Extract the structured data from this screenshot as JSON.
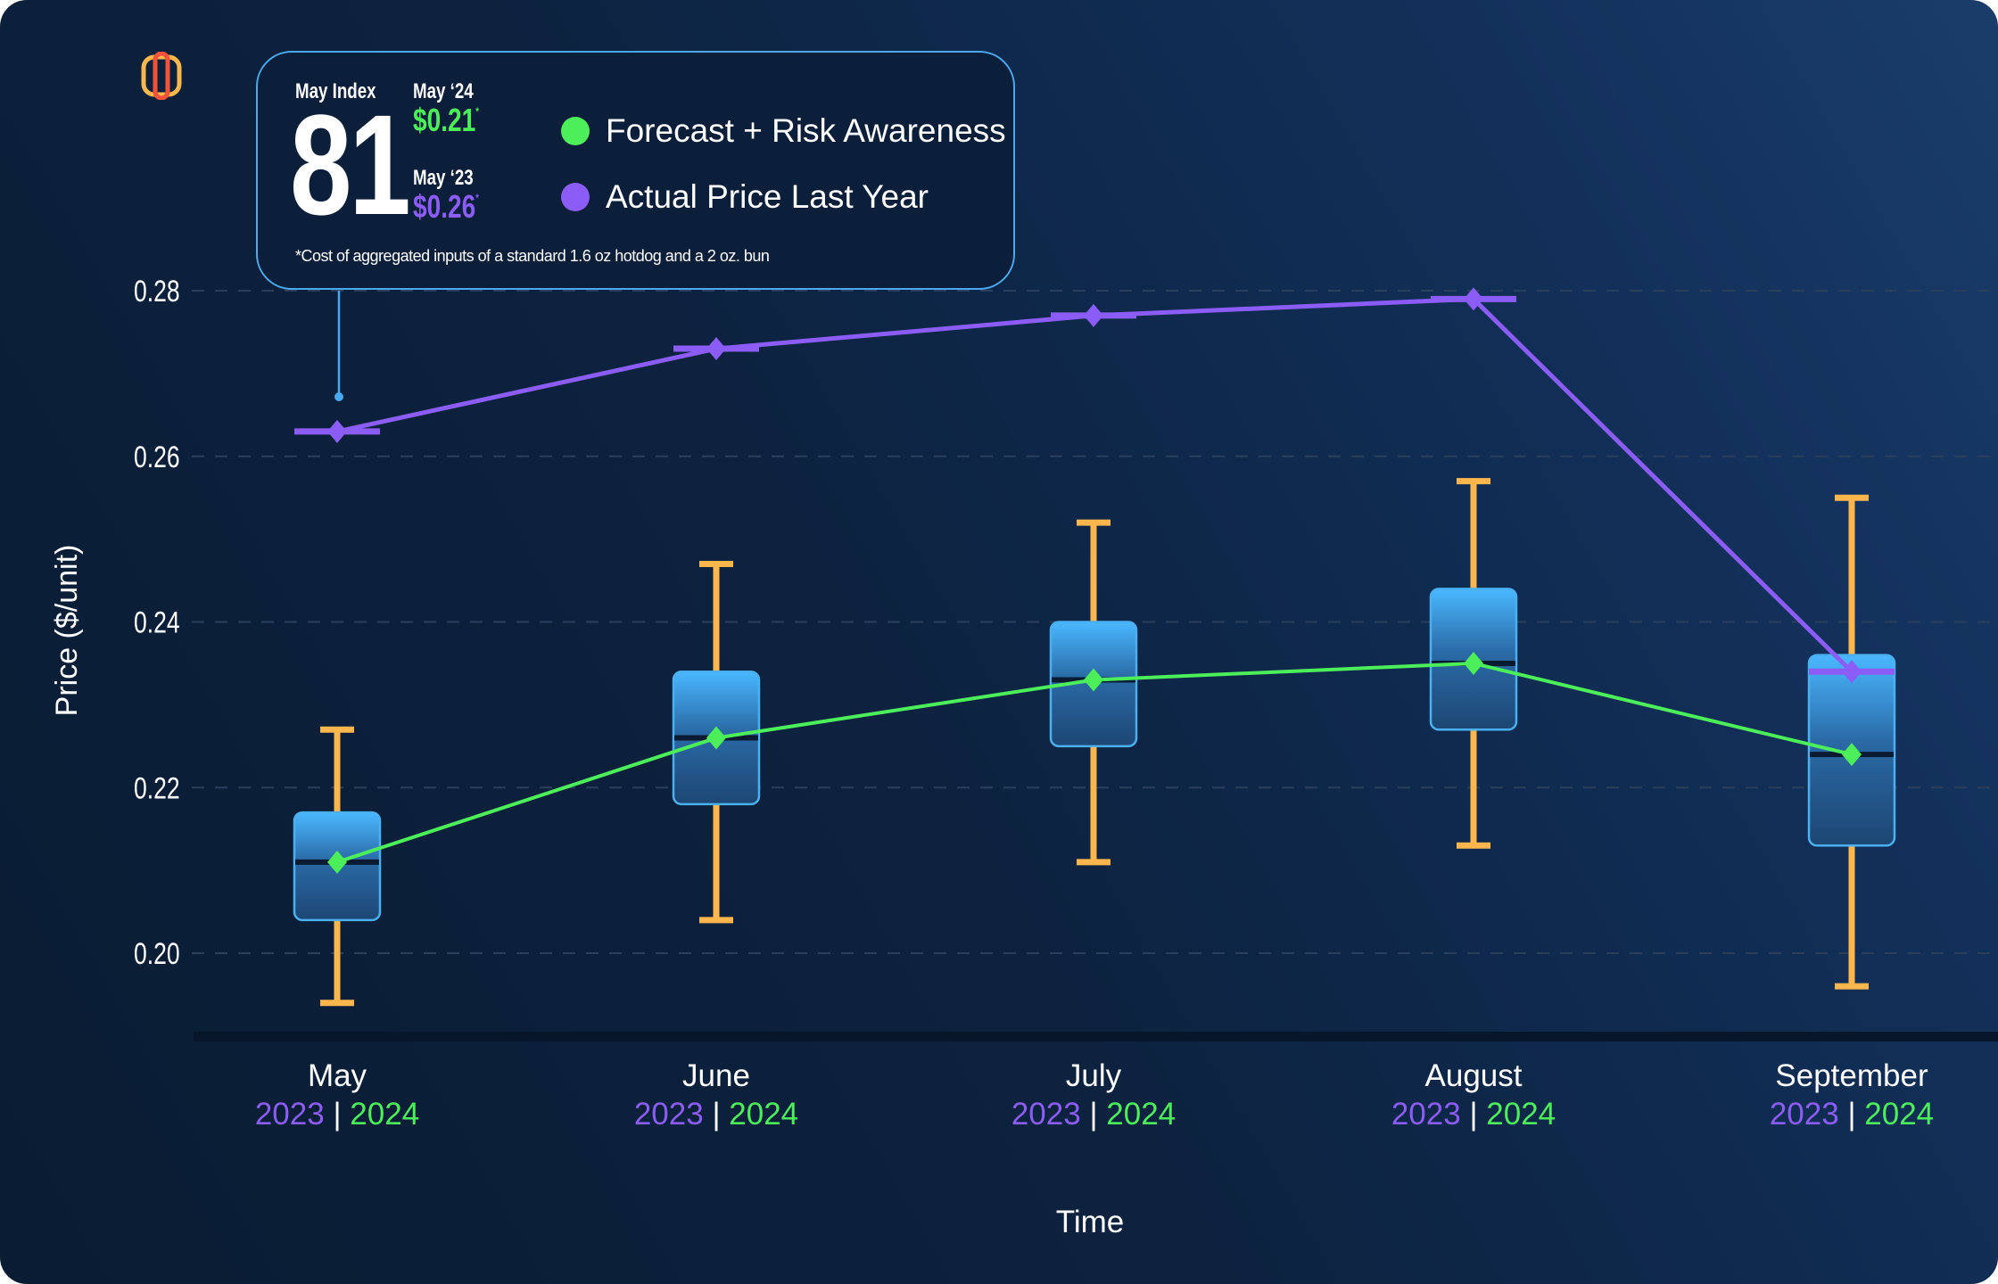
{
  "info_panel": {
    "index_label": "May Index",
    "index_value": "81",
    "current_label": "May ‘24",
    "current_price": "$0.21",
    "previous_label": "May ‘23",
    "previous_price": "$0.26",
    "asterisk": "*",
    "footnote": "*Cost of aggregated inputs of a standard 1.6 oz hotdog and a 2 oz. bun"
  },
  "colors": {
    "forecast": "#4cee5a",
    "actual": "#8b5cf6",
    "whisker": "#ffb74d",
    "box_top": "#4ab8ff",
    "box_bottom": "#1d4673",
    "box_border": "#4ab0f0",
    "logo_outer": "#ffb74d",
    "logo_inner": "#f0533a"
  },
  "chart_data": {
    "type": "box",
    "xlabel": "Time",
    "ylabel": "Price ($/unit)",
    "ylim": [
      0.19,
      0.285
    ],
    "yticks": [
      "0.20",
      "0.22",
      "0.24",
      "0.26",
      "0.28"
    ],
    "grid": true,
    "legend_placement": "top",
    "categories": [
      {
        "month": "May",
        "year_prev": "2023",
        "sep": "|",
        "year_curr": "2024"
      },
      {
        "month": "June",
        "year_prev": "2023",
        "sep": "|",
        "year_curr": "2024"
      },
      {
        "month": "July",
        "year_prev": "2023",
        "sep": "|",
        "year_curr": "2024"
      },
      {
        "month": "August",
        "year_prev": "2023",
        "sep": "|",
        "year_curr": "2024"
      },
      {
        "month": "September",
        "year_prev": "2023",
        "sep": "|",
        "year_curr": "2024"
      }
    ],
    "boxes": [
      {
        "min": 0.194,
        "q1": 0.204,
        "median": 0.211,
        "q3": 0.217,
        "max": 0.227
      },
      {
        "min": 0.204,
        "q1": 0.218,
        "median": 0.226,
        "q3": 0.234,
        "max": 0.247
      },
      {
        "min": 0.211,
        "q1": 0.225,
        "median": 0.233,
        "q3": 0.24,
        "max": 0.252
      },
      {
        "min": 0.213,
        "q1": 0.227,
        "median": 0.235,
        "q3": 0.244,
        "max": 0.257
      },
      {
        "min": 0.196,
        "q1": 0.213,
        "median": 0.224,
        "q3": 0.236,
        "max": 0.255
      }
    ],
    "series": [
      {
        "name": "Forecast + Risk Awareness",
        "values": [
          0.211,
          0.226,
          0.233,
          0.235,
          0.224
        ]
      },
      {
        "name": "Actual Price Last Year",
        "values": [
          0.263,
          0.273,
          0.277,
          0.279,
          0.234
        ]
      }
    ]
  }
}
